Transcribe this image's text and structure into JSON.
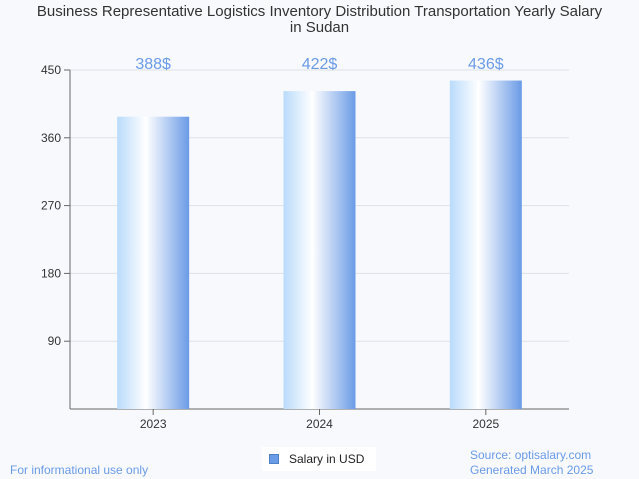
{
  "chart_data": {
    "type": "bar",
    "title_lines": [
      "Business Representative Logistics Inventory Distribution Transportation Yearly Salary",
      "in Sudan"
    ],
    "categories": [
      "2023",
      "2024",
      "2025"
    ],
    "series": [
      {
        "name": "Salary in USD",
        "values": [
          388,
          422,
          436
        ],
        "labels": [
          "388$",
          "422$",
          "436$"
        ]
      }
    ],
    "ylim": [
      0,
      450
    ],
    "yticks": [
      90,
      180,
      270,
      360,
      450
    ],
    "grid": true,
    "legend": "bottom-center",
    "colors": {
      "bar_edge": "#6a9be6",
      "bar_mid": "#ffffff",
      "bar_light": "#b9dbfb",
      "label": "#6a9be6"
    }
  },
  "footer": {
    "left": "For informational use only",
    "source": "Source: optisalary.com",
    "generated": "Generated March 2025"
  }
}
